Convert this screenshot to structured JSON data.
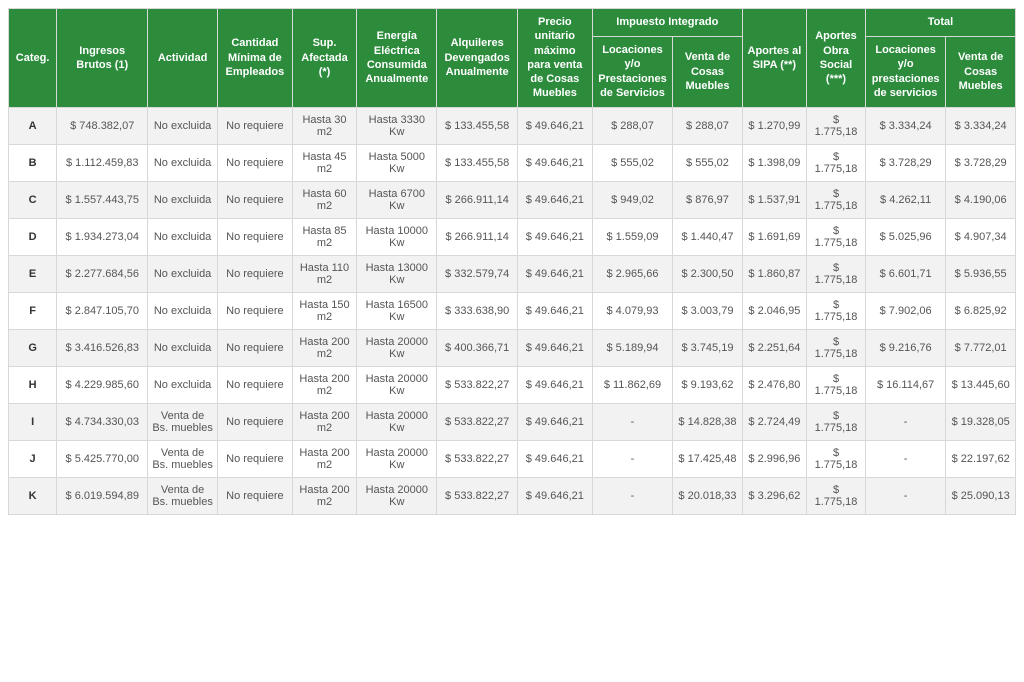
{
  "colors": {
    "header_bg": "#2c8c3c",
    "header_fg": "#ffffff",
    "row_odd_bg": "#f2f2f2",
    "row_even_bg": "#ffffff",
    "border": "#d8d8d8",
    "body_text": "#555555",
    "cat_text": "#333333"
  },
  "typography": {
    "font_family": "Arial, Helvetica, sans-serif",
    "header_fontsize_pt": 8,
    "body_fontsize_pt": 8
  },
  "header": {
    "categ": "Categ.",
    "ingresos": "Ingresos Brutos (1)",
    "actividad": "Actividad",
    "empleados": "Cantidad Mínima de Empleados",
    "sup": "Sup. Afectada (*)",
    "energia": "Energía Eléctrica Consumida Anualmente",
    "alquileres": "Alquileres Devengados Anualmente",
    "precio": "Precio unitario máximo para venta de Cosas Muebles",
    "impuesto_group": "Impuesto Integrado",
    "impuesto_loc": "Locaciones y/o Prestaciones de Servicios",
    "impuesto_ven": "Venta de Cosas Muebles",
    "sipa": "Aportes al SIPA (**)",
    "obra": "Aportes Obra Social (***)",
    "total_group": "Total",
    "total_loc": "Locaciones y/o prestaciones de servicios",
    "total_ven": "Venta de Cosas Muebles"
  },
  "rows": [
    {
      "cat": "A",
      "ing": "$ 748.382,07",
      "act": "No excluida",
      "emp": "No requiere",
      "sup": "Hasta 30 m2",
      "ene": "Hasta 3330 Kw",
      "alq": "$ 133.455,58",
      "pre": "$ 49.646,21",
      "loc": "$ 288,07",
      "ven": "$ 288,07",
      "sipa": "$ 1.270,99",
      "obra": "$ 1.775,18",
      "tloc": "$ 3.334,24",
      "tven": "$ 3.334,24"
    },
    {
      "cat": "B",
      "ing": "$ 1.112.459,83",
      "act": "No excluida",
      "emp": "No requiere",
      "sup": "Hasta 45 m2",
      "ene": "Hasta 5000 Kw",
      "alq": "$ 133.455,58",
      "pre": "$ 49.646,21",
      "loc": "$ 555,02",
      "ven": "$ 555,02",
      "sipa": "$ 1.398,09",
      "obra": "$ 1.775,18",
      "tloc": "$ 3.728,29",
      "tven": "$ 3.728,29"
    },
    {
      "cat": "C",
      "ing": "$ 1.557.443,75",
      "act": "No excluida",
      "emp": "No requiere",
      "sup": "Hasta 60 m2",
      "ene": "Hasta 6700 Kw",
      "alq": "$ 266.911,14",
      "pre": "$ 49.646,21",
      "loc": "$ 949,02",
      "ven": "$ 876,97",
      "sipa": "$ 1.537,91",
      "obra": "$ 1.775,18",
      "tloc": "$ 4.262,11",
      "tven": "$ 4.190,06"
    },
    {
      "cat": "D",
      "ing": "$ 1.934.273,04",
      "act": "No excluida",
      "emp": "No requiere",
      "sup": "Hasta 85 m2",
      "ene": "Hasta 10000 Kw",
      "alq": "$ 266.911,14",
      "pre": "$ 49.646,21",
      "loc": "$ 1.559,09",
      "ven": "$ 1.440,47",
      "sipa": "$ 1.691,69",
      "obra": "$ 1.775,18",
      "tloc": "$ 5.025,96",
      "tven": "$ 4.907,34"
    },
    {
      "cat": "E",
      "ing": "$ 2.277.684,56",
      "act": "No excluida",
      "emp": "No requiere",
      "sup": "Hasta 110 m2",
      "ene": "Hasta 13000 Kw",
      "alq": "$ 332.579,74",
      "pre": "$ 49.646,21",
      "loc": "$ 2.965,66",
      "ven": "$ 2.300,50",
      "sipa": "$ 1.860,87",
      "obra": "$ 1.775,18",
      "tloc": "$ 6.601,71",
      "tven": "$ 5.936,55"
    },
    {
      "cat": "F",
      "ing": "$ 2.847.105,70",
      "act": "No excluida",
      "emp": "No requiere",
      "sup": "Hasta 150 m2",
      "ene": "Hasta 16500 Kw",
      "alq": "$ 333.638,90",
      "pre": "$ 49.646,21",
      "loc": "$ 4.079,93",
      "ven": "$ 3.003,79",
      "sipa": "$ 2.046,95",
      "obra": "$ 1.775,18",
      "tloc": "$ 7.902,06",
      "tven": "$ 6.825,92"
    },
    {
      "cat": "G",
      "ing": "$ 3.416.526,83",
      "act": "No excluida",
      "emp": "No requiere",
      "sup": "Hasta 200 m2",
      "ene": "Hasta 20000 Kw",
      "alq": "$ 400.366,71",
      "pre": "$ 49.646,21",
      "loc": "$ 5.189,94",
      "ven": "$ 3.745,19",
      "sipa": "$ 2.251,64",
      "obra": "$ 1.775,18",
      "tloc": "$ 9.216,76",
      "tven": "$ 7.772,01"
    },
    {
      "cat": "H",
      "ing": "$ 4.229.985,60",
      "act": "No excluida",
      "emp": "No requiere",
      "sup": "Hasta 200 m2",
      "ene": "Hasta 20000 Kw",
      "alq": "$ 533.822,27",
      "pre": "$ 49.646,21",
      "loc": "$ 11.862,69",
      "ven": "$ 9.193,62",
      "sipa": "$ 2.476,80",
      "obra": "$ 1.775,18",
      "tloc": "$ 16.114,67",
      "tven": "$ 13.445,60"
    },
    {
      "cat": "I",
      "ing": "$ 4.734.330,03",
      "act": "Venta de Bs. muebles",
      "emp": "No requiere",
      "sup": "Hasta 200 m2",
      "ene": "Hasta 20000 Kw",
      "alq": "$ 533.822,27",
      "pre": "$ 49.646,21",
      "loc": "-",
      "ven": "$ 14.828,38",
      "sipa": "$ 2.724,49",
      "obra": "$ 1.775,18",
      "tloc": "-",
      "tven": "$ 19.328,05"
    },
    {
      "cat": "J",
      "ing": "$ 5.425.770,00",
      "act": "Venta de Bs. muebles",
      "emp": "No requiere",
      "sup": "Hasta 200 m2",
      "ene": "Hasta 20000 Kw",
      "alq": "$ 533.822,27",
      "pre": "$ 49.646,21",
      "loc": "-",
      "ven": "$ 17.425,48",
      "sipa": "$ 2.996,96",
      "obra": "$ 1.775,18",
      "tloc": "-",
      "tven": "$ 22.197,62"
    },
    {
      "cat": "K",
      "ing": "$ 6.019.594,89",
      "act": "Venta de Bs. muebles",
      "emp": "No requiere",
      "sup": "Hasta 200 m2",
      "ene": "Hasta 20000 Kw",
      "alq": "$ 533.822,27",
      "pre": "$ 49.646,21",
      "loc": "-",
      "ven": "$ 20.018,33",
      "sipa": "$ 3.296,62",
      "obra": "$ 1.775,18",
      "tloc": "-",
      "tven": "$ 25.090,13"
    }
  ]
}
